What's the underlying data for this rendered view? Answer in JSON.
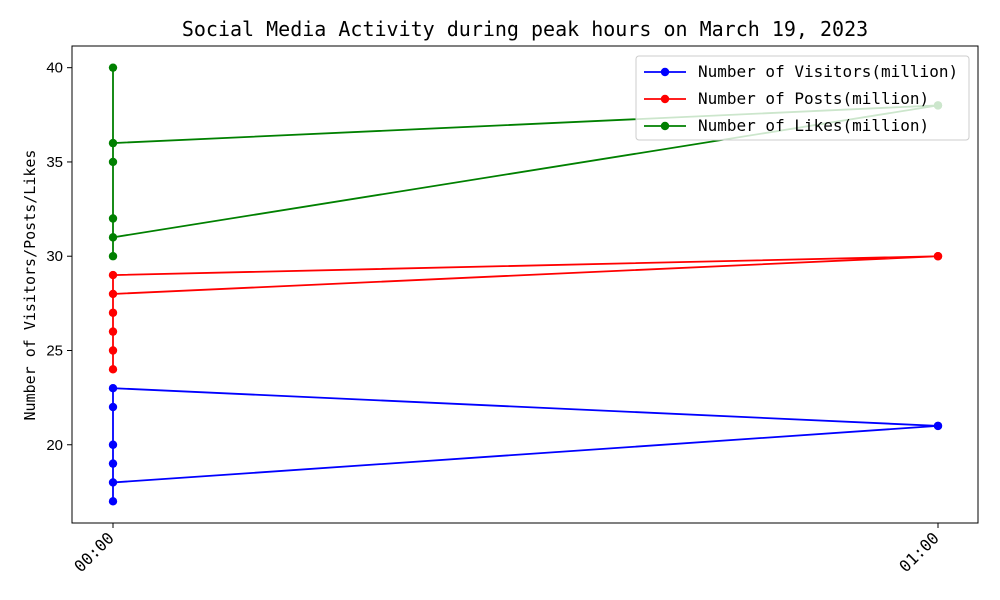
{
  "chart_data": {
    "type": "line",
    "title": "Social Media Activity during peak hours on March 19, 2023",
    "xlabel": "",
    "ylabel": "Number of Visitors/Posts/Likes",
    "x_ticks": [
      "00:00",
      "01:00"
    ],
    "ylim": [
      15.85,
      41.15
    ],
    "y_ticks": [
      20,
      25,
      30,
      35,
      40
    ],
    "grid": false,
    "legend_position": "top-right",
    "series": [
      {
        "name": "Number of Visitors(million)",
        "color": "#0000ff",
        "points": [
          {
            "x": "01:00",
            "y": 21
          },
          {
            "x": "00:00",
            "y": 23
          },
          {
            "x": "00:00",
            "y": 22
          },
          {
            "x": "00:00",
            "y": 20
          },
          {
            "x": "00:00",
            "y": 19
          },
          {
            "x": "00:00",
            "y": 17
          },
          {
            "x": "00:00",
            "y": 18
          },
          {
            "x": "01:00",
            "y": 21
          }
        ]
      },
      {
        "name": "Number of Posts(million)",
        "color": "#ff0000",
        "points": [
          {
            "x": "01:00",
            "y": 30
          },
          {
            "x": "00:00",
            "y": 29
          },
          {
            "x": "00:00",
            "y": 27
          },
          {
            "x": "00:00",
            "y": 26
          },
          {
            "x": "00:00",
            "y": 25
          },
          {
            "x": "00:00",
            "y": 24
          },
          {
            "x": "00:00",
            "y": 28
          },
          {
            "x": "01:00",
            "y": 30
          }
        ]
      },
      {
        "name": "Number of Likes(million)",
        "color": "#008000",
        "points": [
          {
            "x": "01:00",
            "y": 38
          },
          {
            "x": "00:00",
            "y": 36
          },
          {
            "x": "00:00",
            "y": 35
          },
          {
            "x": "00:00",
            "y": 40
          },
          {
            "x": "00:00",
            "y": 32
          },
          {
            "x": "00:00",
            "y": 30
          },
          {
            "x": "00:00",
            "y": 31
          },
          {
            "x": "01:00",
            "y": 38
          }
        ]
      }
    ]
  }
}
